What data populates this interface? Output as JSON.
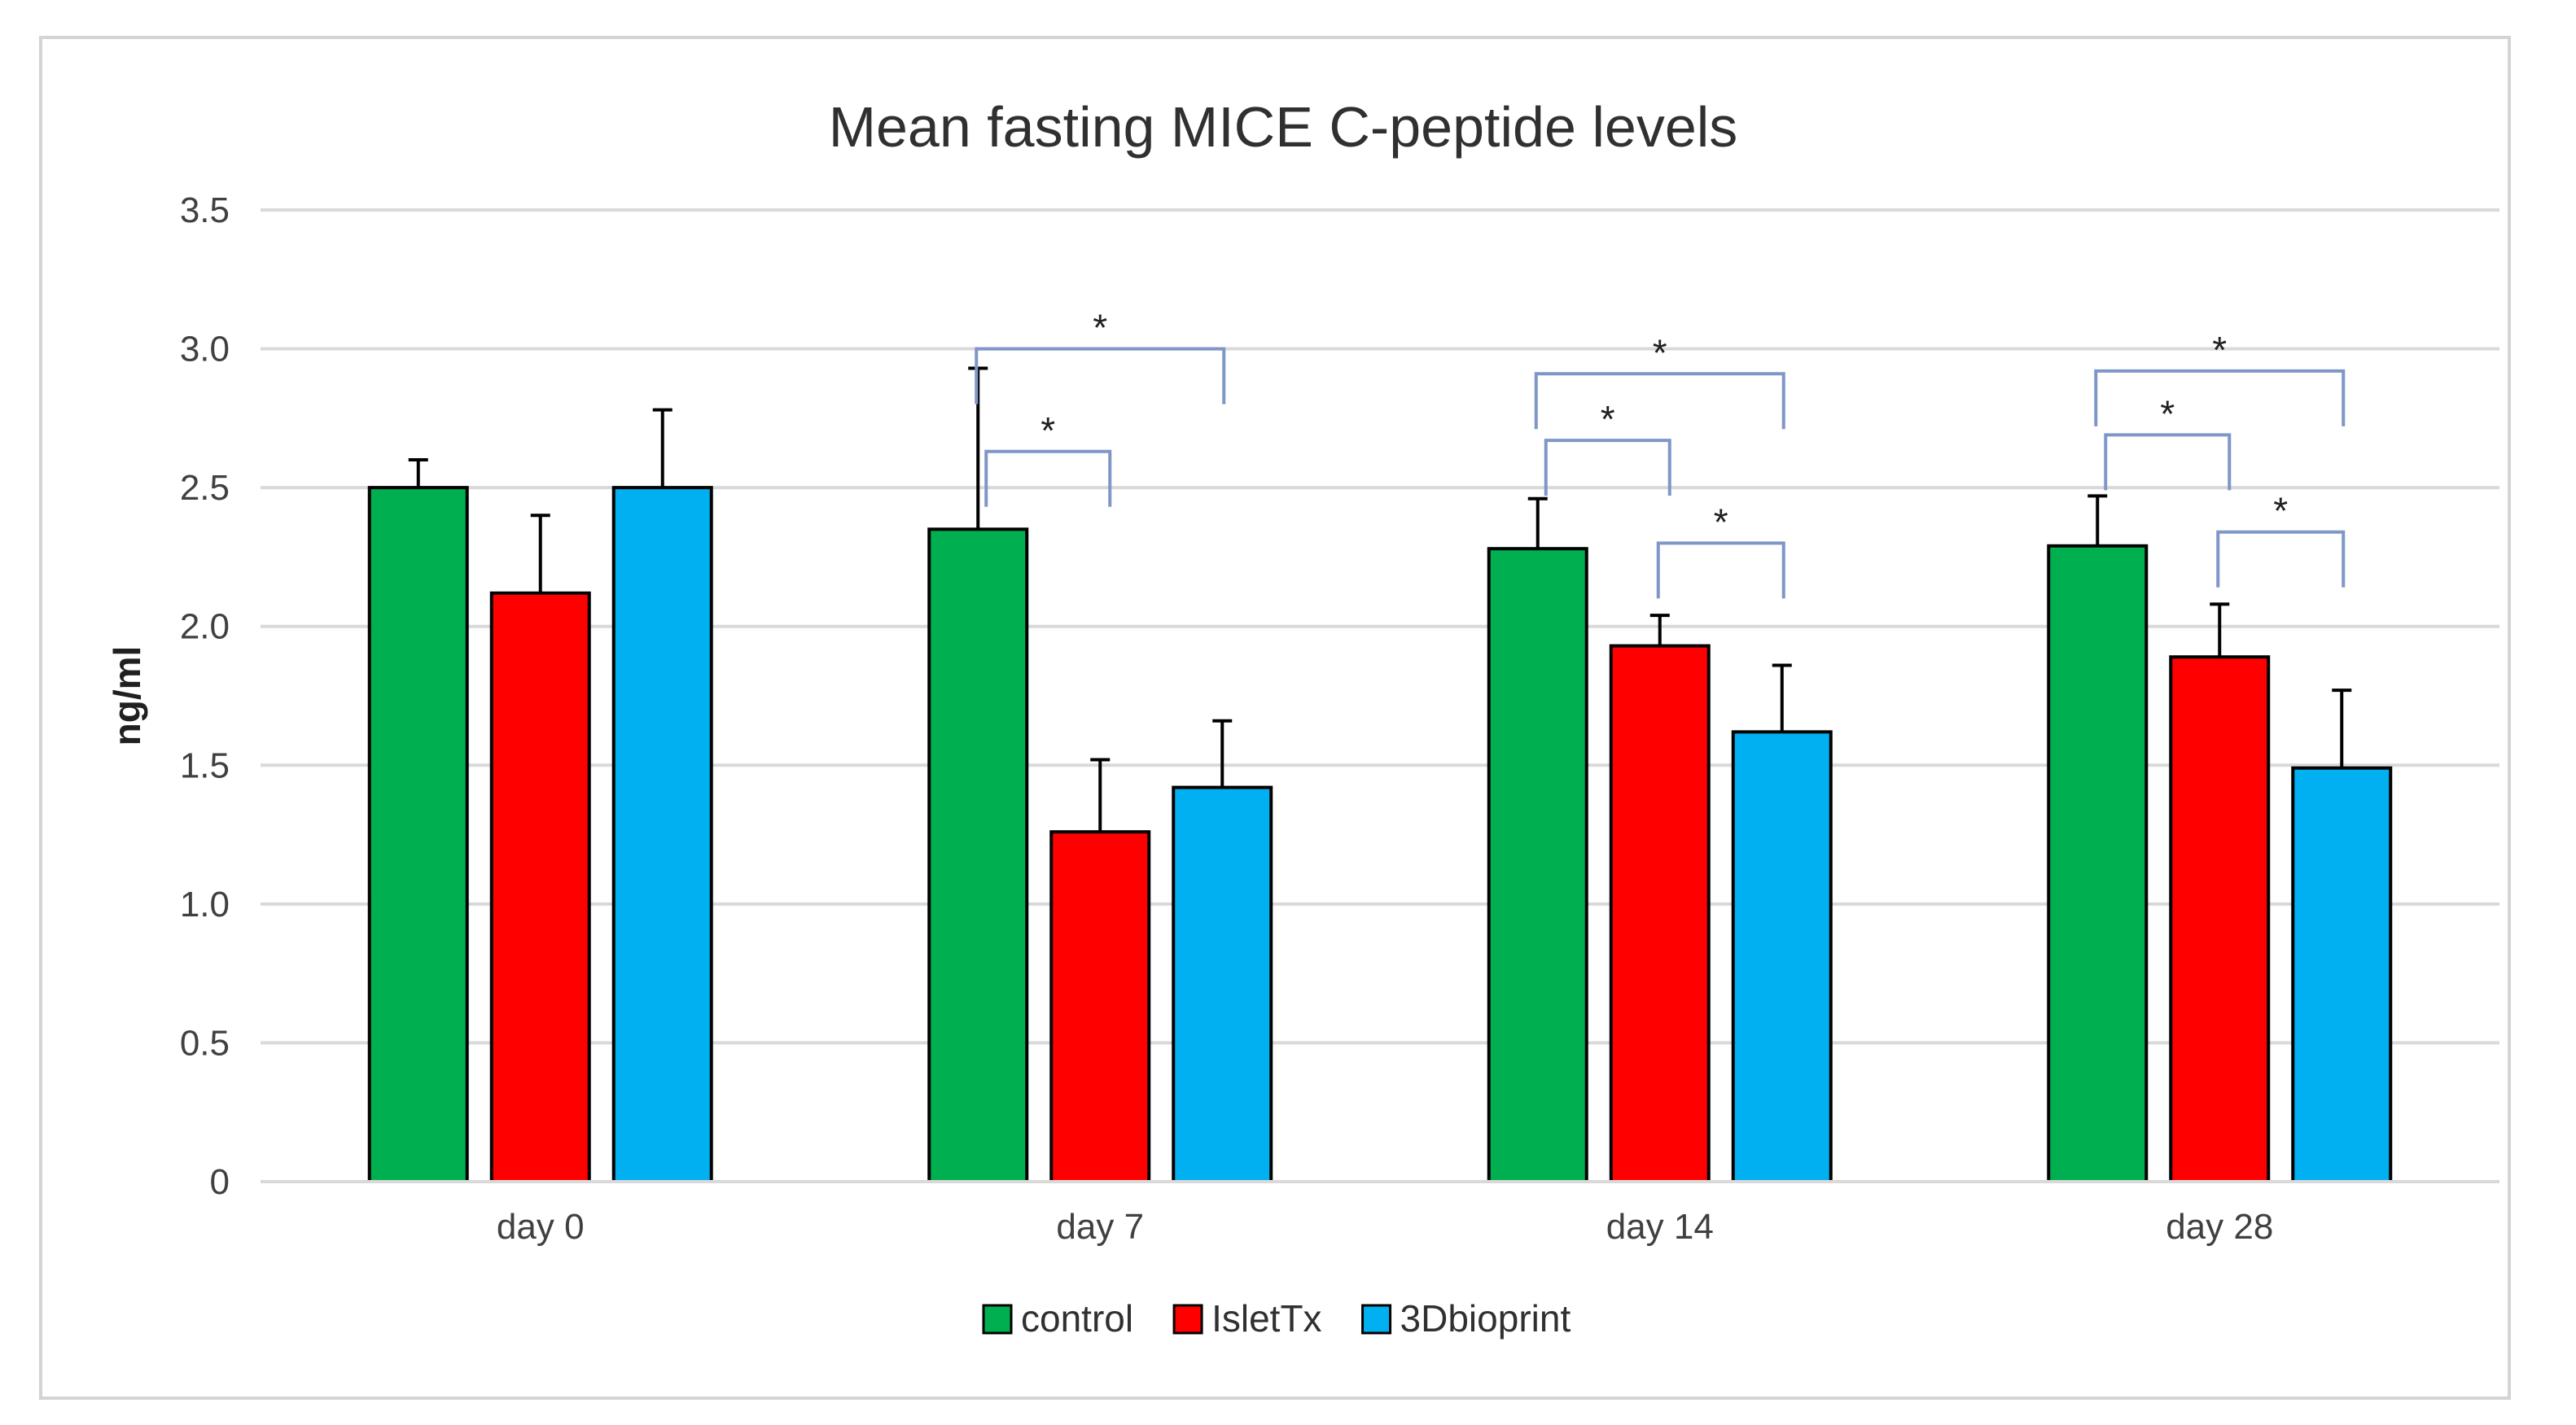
{
  "chart_data": {
    "type": "bar",
    "title": "Mean fasting MICE C-peptide levels",
    "xlabel": "",
    "ylabel": "ng/ml",
    "ylim": [
      0,
      3.5
    ],
    "yticks": [
      0,
      0.5,
      1.0,
      1.5,
      2.0,
      2.5,
      3.0,
      3.5
    ],
    "ytick_labels": [
      "0",
      "0.5",
      "1.0",
      "1.5",
      "2.0",
      "2.5",
      "3.0",
      "3.5"
    ],
    "grid": true,
    "legend_position": "bottom-center",
    "categories": [
      "day 0",
      "day 7",
      "day 14",
      "day 28"
    ],
    "series": [
      {
        "name": "control",
        "color": "#00b050",
        "values": [
          2.5,
          2.35,
          2.28,
          2.29
        ],
        "errors": [
          0.1,
          0.58,
          0.18,
          0.18
        ]
      },
      {
        "name": "IsletTx",
        "color": "#ff0000",
        "values": [
          2.12,
          1.26,
          1.93,
          1.89
        ],
        "errors": [
          0.28,
          0.26,
          0.11,
          0.19
        ]
      },
      {
        "name": "3Dbioprint",
        "color": "#00b0f0",
        "values": [
          2.5,
          1.42,
          1.62,
          1.49
        ],
        "errors": [
          0.28,
          0.24,
          0.24,
          0.28
        ]
      }
    ],
    "significance": [
      {
        "category": "day 7",
        "from": "control",
        "to": "3Dbioprint",
        "level": 3.0,
        "label": "*"
      },
      {
        "category": "day 7",
        "from": "control",
        "to": "IsletTx",
        "level": 2.63,
        "label": "*"
      },
      {
        "category": "day 14",
        "from": "control",
        "to": "3Dbioprint",
        "level": 2.91,
        "label": "*"
      },
      {
        "category": "day 14",
        "from": "control",
        "to": "IsletTx",
        "level": 2.67,
        "label": "*"
      },
      {
        "category": "day 14",
        "from": "IsletTx",
        "to": "3Dbioprint",
        "level": 2.3,
        "label": "*"
      },
      {
        "category": "day 28",
        "from": "control",
        "to": "3Dbioprint",
        "level": 2.92,
        "label": "*"
      },
      {
        "category": "day 28",
        "from": "control",
        "to": "IsletTx",
        "level": 2.69,
        "label": "*"
      },
      {
        "category": "day 28",
        "from": "IsletTx",
        "to": "3Dbioprint",
        "level": 2.34,
        "label": "*"
      }
    ]
  }
}
